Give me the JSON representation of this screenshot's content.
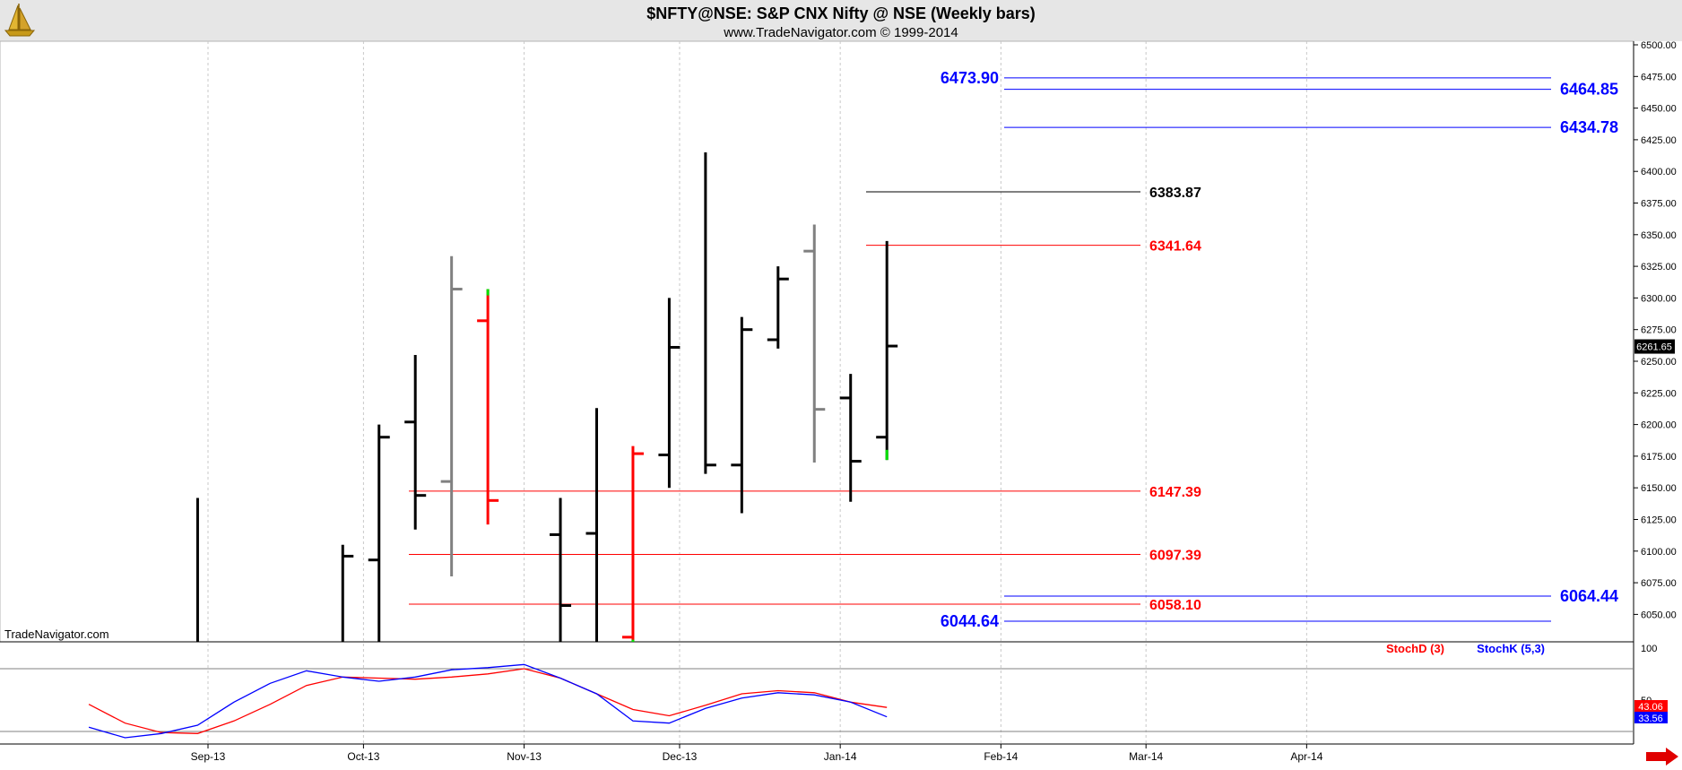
{
  "header": {
    "title": "$NFTY@NSE:  S&P CNX Nifty @ NSE  (Weekly bars)",
    "subtitle": "www.TradeNavigator.com © 1999-2014",
    "watermark": "TradeNavigator.com"
  },
  "colors": {
    "up_bar": "#000000",
    "down_bar_gray": "#808080",
    "down_bar_red": "#ff0000",
    "blue_level": "#0000ff",
    "red_level": "#ff0000",
    "black_level": "#000000",
    "grid": "#c8c8c8",
    "panel_bg": "#ffffff",
    "header_bg": "#e6e6e6",
    "stoch_d": "#ff0000",
    "stoch_k": "#0000ff",
    "arrow": "#e00000"
  },
  "icons": {
    "logo": "golden-sailing-ship-icon",
    "scroll": "red-right-arrow-icon"
  },
  "chart_data": {
    "type": "ohlc",
    "price_axis": {
      "ylim": [
        6025,
        6500
      ],
      "ticks": [
        "6500.00",
        "6475.00",
        "6450.00",
        "6425.00",
        "6400.00",
        "6375.00",
        "6350.00",
        "6325.00",
        "6300.00",
        "6275.00",
        "6250.00",
        "6225.00",
        "6200.00",
        "6175.00",
        "6150.00",
        "6125.00",
        "6100.00",
        "6075.00",
        "6050.00"
      ],
      "last_price": "6261.65"
    },
    "x_ticks": [
      "Sep-13",
      "Oct-13",
      "Nov-13",
      "Dec-13",
      "Jan-14",
      "Feb-14",
      "Mar-14",
      "Apr-14"
    ],
    "bars": [
      {
        "week": "2013-08-30",
        "open": null,
        "high": 6142,
        "low": 6025,
        "close": null,
        "color": "black"
      },
      {
        "week": "2013-09-27",
        "open": null,
        "high": 6105,
        "low": 6025,
        "close": 6096,
        "color": "black"
      },
      {
        "week": "2013-10-04",
        "open": 6093,
        "high": 6200,
        "low": 6025,
        "close": 6190,
        "color": "black"
      },
      {
        "week": "2013-10-11",
        "open": 6202,
        "high": 6255,
        "low": 6117,
        "close": 6144,
        "color": "black"
      },
      {
        "week": "2013-10-18",
        "open": 6155,
        "high": 6333,
        "low": 6080,
        "close": 6307,
        "color": "gray"
      },
      {
        "week": "2013-10-25",
        "open": 6282,
        "high": 6307,
        "low": 6121,
        "close": 6140,
        "color": "red"
      },
      {
        "week": "2013-11-08",
        "open": 6113,
        "high": 6142,
        "low": 6025,
        "close": 6057,
        "color": "black"
      },
      {
        "week": "2013-11-15",
        "open": 6114,
        "high": 6213,
        "low": 6025,
        "close": null,
        "color": "black"
      },
      {
        "week": "2013-11-22",
        "open": 6032,
        "high": 6183,
        "low": 6025,
        "close": 6177,
        "color": "red"
      },
      {
        "week": "2013-11-29",
        "open": 6176,
        "high": 6300,
        "low": 6150,
        "close": 6261,
        "color": "black"
      },
      {
        "week": "2013-12-06",
        "open": null,
        "high": 6415,
        "low": 6161,
        "close": 6168,
        "color": "black"
      },
      {
        "week": "2013-12-13",
        "open": 6168,
        "high": 6285,
        "low": 6130,
        "close": 6275,
        "color": "black"
      },
      {
        "week": "2013-12-20",
        "open": 6267,
        "high": 6325,
        "low": 6260,
        "close": 6315,
        "color": "black"
      },
      {
        "week": "2013-12-27",
        "open": 6337,
        "high": 6358,
        "low": 6170,
        "close": 6212,
        "color": "gray"
      },
      {
        "week": "2014-01-03",
        "open": 6221,
        "high": 6240,
        "low": 6139,
        "close": 6171,
        "color": "black"
      },
      {
        "week": "2014-01-10",
        "open": 6190,
        "high": 6345,
        "low": 6172,
        "close": 6262,
        "color": "black"
      }
    ],
    "levels": [
      {
        "value": 6473.9,
        "label": "6473.90",
        "color": "blue",
        "label_side": "left"
      },
      {
        "value": 6464.85,
        "label": "6464.85",
        "color": "blue",
        "label_side": "right"
      },
      {
        "value": 6434.78,
        "label": "6434.78",
        "color": "blue",
        "label_side": "right"
      },
      {
        "value": 6383.87,
        "label": "6383.87",
        "color": "black",
        "label_side": "right"
      },
      {
        "value": 6341.64,
        "label": "6341.64",
        "color": "red",
        "label_side": "right"
      },
      {
        "value": 6147.39,
        "label": "6147.39",
        "color": "red",
        "label_side": "right"
      },
      {
        "value": 6097.39,
        "label": "6097.39",
        "color": "red",
        "label_side": "right"
      },
      {
        "value": 6058.1,
        "label": "6058.10",
        "color": "red",
        "label_side": "right"
      },
      {
        "value": 6064.44,
        "label": "6064.44",
        "color": "blue",
        "label_side": "right"
      },
      {
        "value": 6044.64,
        "label": "6044.64",
        "color": "blue",
        "label_side": "left"
      }
    ],
    "stochastic": {
      "legend_d": "StochD (3)",
      "legend_k": "StochK (5,3)",
      "ylim": [
        0,
        100
      ],
      "tick_labels": [
        "100",
        "50"
      ],
      "reference_lines": [
        80,
        20
      ],
      "last_d": "43.06",
      "last_k": "33.56",
      "weeks": [
        "2013-08-09",
        "2013-08-16",
        "2013-08-23",
        "2013-08-30",
        "2013-09-06",
        "2013-09-13",
        "2013-09-20",
        "2013-09-27",
        "2013-10-04",
        "2013-10-11",
        "2013-10-18",
        "2013-10-25",
        "2013-11-01",
        "2013-11-08",
        "2013-11-15",
        "2013-11-22",
        "2013-11-29",
        "2013-12-06",
        "2013-12-13",
        "2013-12-20",
        "2013-12-27",
        "2014-01-03",
        "2014-01-10"
      ],
      "d": [
        46,
        28,
        19,
        18,
        30,
        46,
        64,
        72,
        71,
        70,
        72,
        75,
        80,
        71,
        56,
        41,
        35,
        45,
        56,
        59,
        57,
        48,
        43
      ],
      "k": [
        24,
        14,
        18,
        26,
        48,
        66,
        78,
        72,
        68,
        72,
        79,
        81,
        84,
        71,
        56,
        30,
        28,
        42,
        52,
        57,
        55,
        48,
        34
      ]
    }
  }
}
